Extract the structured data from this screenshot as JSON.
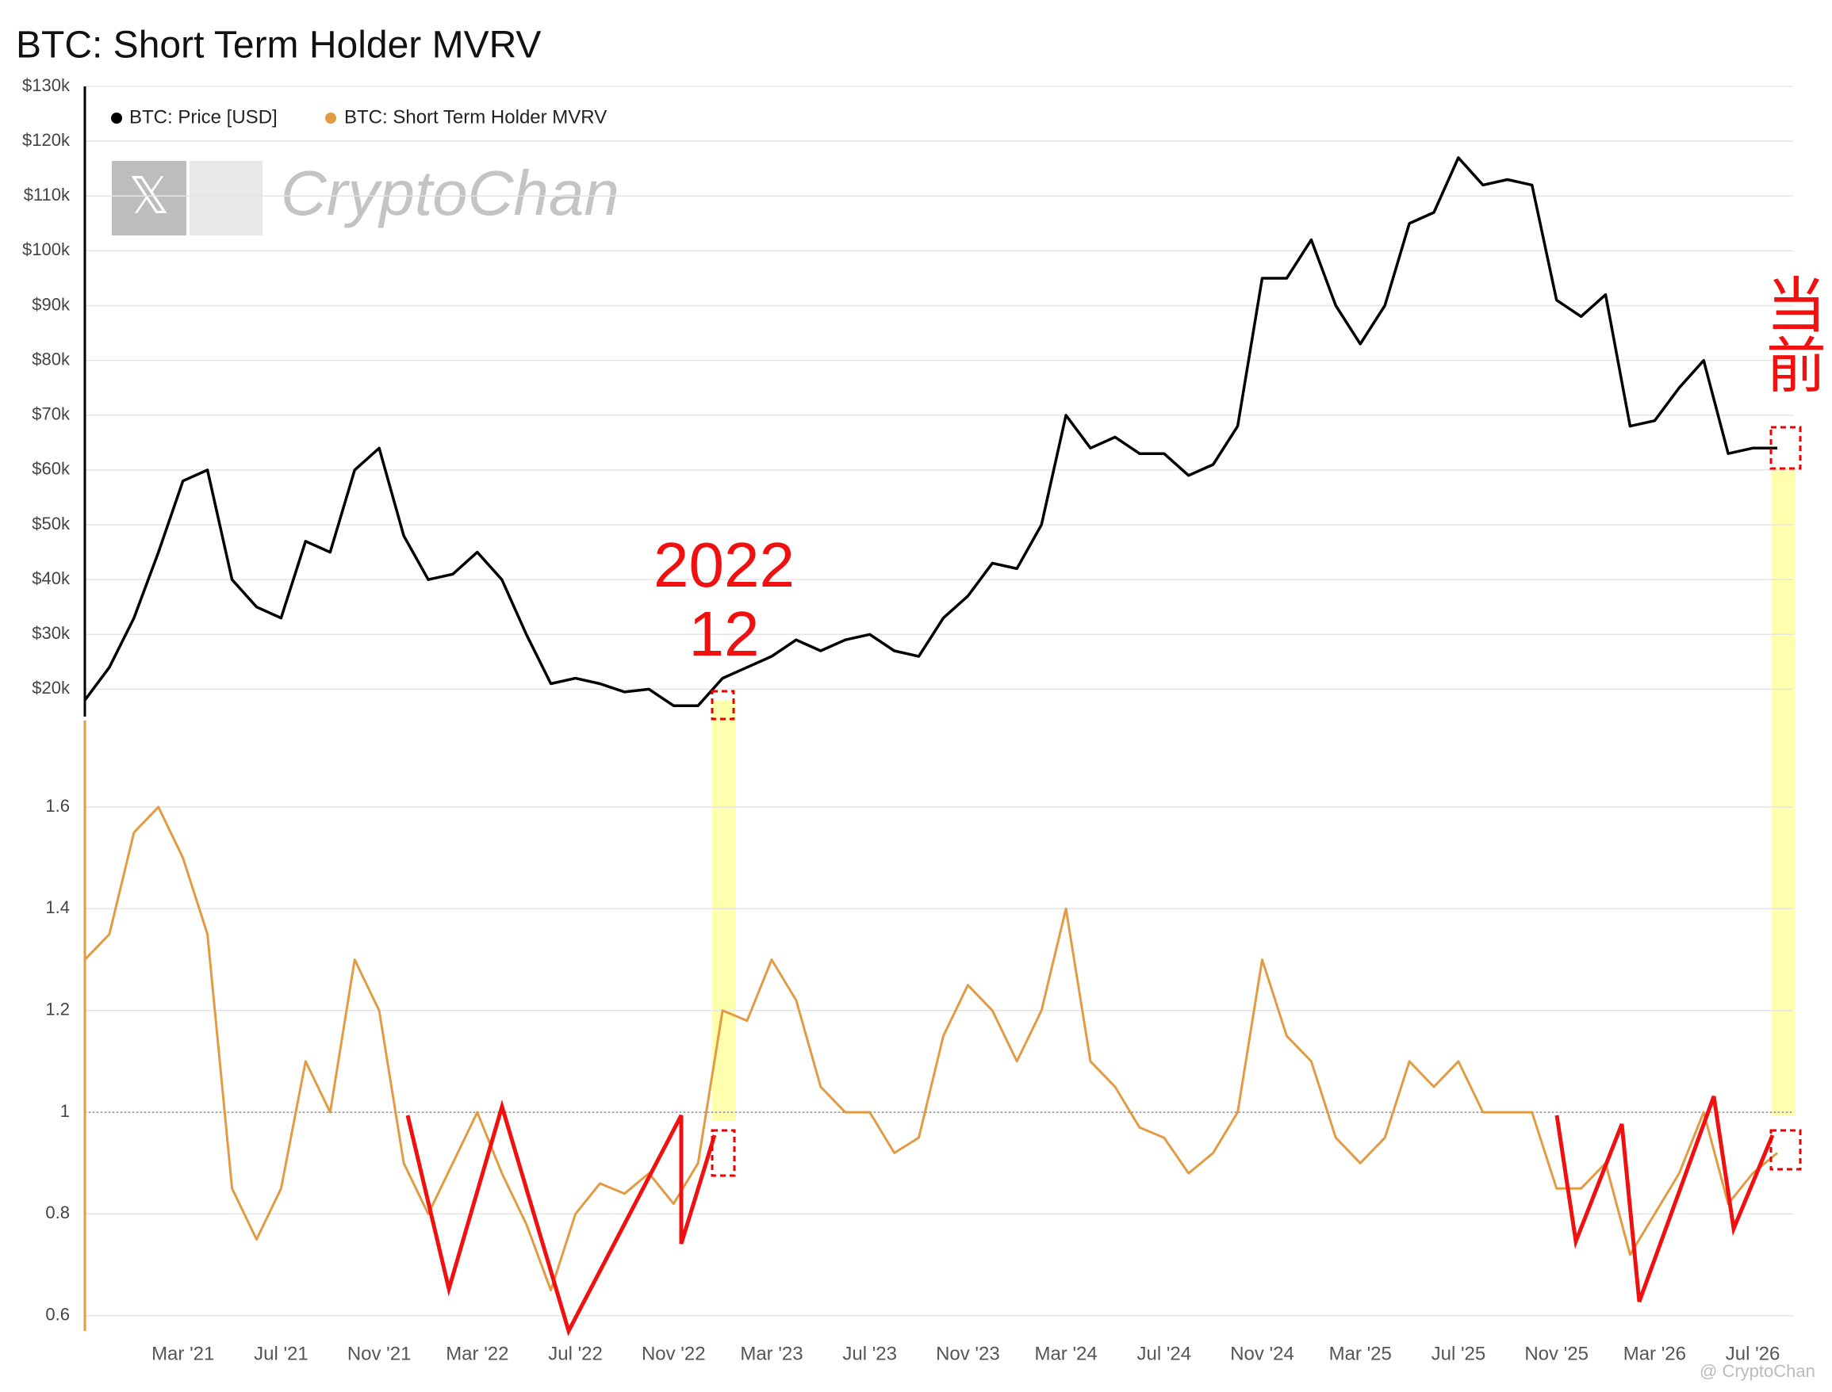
{
  "chart_data": [
    {
      "type": "line",
      "title": "BTC: Short Term Holder MVRV",
      "x": [
        "2020-11",
        "2020-12",
        "2021-01",
        "2021-02",
        "2021-03",
        "2021-04",
        "2021-05",
        "2021-06",
        "2021-07",
        "2021-08",
        "2021-09",
        "2021-10",
        "2021-11",
        "2021-12",
        "2022-01",
        "2022-02",
        "2022-03",
        "2022-04",
        "2022-05",
        "2022-06",
        "2022-07",
        "2022-08",
        "2022-09",
        "2022-10",
        "2022-11",
        "2022-12",
        "2023-01",
        "2023-02",
        "2023-03",
        "2023-04",
        "2023-05",
        "2023-06",
        "2023-07",
        "2023-08",
        "2023-09",
        "2023-10",
        "2023-11",
        "2023-12",
        "2024-01",
        "2024-02",
        "2024-03",
        "2024-04",
        "2024-05",
        "2024-06",
        "2024-07",
        "2024-08",
        "2024-09",
        "2024-10",
        "2024-11",
        "2024-12",
        "2025-01",
        "2025-02",
        "2025-03",
        "2025-04",
        "2025-05",
        "2025-06",
        "2025-07",
        "2025-08",
        "2025-09",
        "2025-10",
        "2025-11",
        "2025-12",
        "2026-01",
        "2026-02",
        "2026-03",
        "2026-04",
        "2026-05",
        "2026-06",
        "2026-07",
        "2026-08"
      ],
      "xlim": [
        "2020-11",
        "2026-08"
      ],
      "series": [
        {
          "name": "BTC: Price [USD]",
          "color": "#000000",
          "values": [
            18000,
            24000,
            33000,
            45000,
            58000,
            60000,
            40000,
            35000,
            33000,
            47000,
            45000,
            60000,
            64000,
            48000,
            40000,
            41000,
            45000,
            40000,
            30000,
            21000,
            22000,
            21000,
            19500,
            20000,
            17000,
            17000,
            22000,
            24000,
            26000,
            29000,
            27000,
            29000,
            30000,
            27000,
            26000,
            33000,
            37000,
            43000,
            42000,
            50000,
            70000,
            64000,
            66000,
            63000,
            63000,
            59000,
            61000,
            68000,
            95000,
            95000,
            102000,
            90000,
            83000,
            90000,
            105000,
            107000,
            117000,
            112000,
            113000,
            112000,
            91000,
            88000,
            92000,
            68000,
            69000,
            75000,
            80000,
            63000,
            64000,
            64000
          ]
        }
      ],
      "ylim": [
        15000,
        130000
      ],
      "yticks": [
        {
          "value": 20000,
          "label": "$20k"
        },
        {
          "value": 30000,
          "label": "$30k"
        },
        {
          "value": 40000,
          "label": "$40k"
        },
        {
          "value": 50000,
          "label": "$50k"
        },
        {
          "value": 60000,
          "label": "$60k"
        },
        {
          "value": 70000,
          "label": "$70k"
        },
        {
          "value": 80000,
          "label": "$80k"
        },
        {
          "value": 90000,
          "label": "$90k"
        },
        {
          "value": 100000,
          "label": "$100k"
        },
        {
          "value": 110000,
          "label": "$110k"
        },
        {
          "value": 120000,
          "label": "$120k"
        },
        {
          "value": 130000,
          "label": "$130k"
        }
      ],
      "grid": true
    },
    {
      "type": "line",
      "x": [
        "2020-11",
        "2020-12",
        "2021-01",
        "2021-02",
        "2021-03",
        "2021-04",
        "2021-05",
        "2021-06",
        "2021-07",
        "2021-08",
        "2021-09",
        "2021-10",
        "2021-11",
        "2021-12",
        "2022-01",
        "2022-02",
        "2022-03",
        "2022-04",
        "2022-05",
        "2022-06",
        "2022-07",
        "2022-08",
        "2022-09",
        "2022-10",
        "2022-11",
        "2022-12",
        "2023-01",
        "2023-02",
        "2023-03",
        "2023-04",
        "2023-05",
        "2023-06",
        "2023-07",
        "2023-08",
        "2023-09",
        "2023-10",
        "2023-11",
        "2023-12",
        "2024-01",
        "2024-02",
        "2024-03",
        "2024-04",
        "2024-05",
        "2024-06",
        "2024-07",
        "2024-08",
        "2024-09",
        "2024-10",
        "2024-11",
        "2024-12",
        "2025-01",
        "2025-02",
        "2025-03",
        "2025-04",
        "2025-05",
        "2025-06",
        "2025-07",
        "2025-08",
        "2025-09",
        "2025-10",
        "2025-11",
        "2025-12",
        "2026-01",
        "2026-02",
        "2026-03",
        "2026-04",
        "2026-05",
        "2026-06",
        "2026-07",
        "2026-08"
      ],
      "xlim": [
        "2020-11",
        "2026-08"
      ],
      "series": [
        {
          "name": "BTC: Short Term Holder MVRV",
          "color": "#e39b43",
          "values": [
            1.3,
            1.35,
            1.55,
            1.6,
            1.5,
            1.35,
            0.85,
            0.75,
            0.85,
            1.1,
            1.0,
            1.3,
            1.2,
            0.9,
            0.8,
            0.9,
            1.0,
            0.88,
            0.78,
            0.65,
            0.8,
            0.86,
            0.84,
            0.88,
            0.82,
            0.9,
            1.2,
            1.18,
            1.3,
            1.22,
            1.05,
            1.0,
            1.0,
            0.92,
            0.95,
            1.15,
            1.25,
            1.2,
            1.1,
            1.2,
            1.4,
            1.1,
            1.05,
            0.97,
            0.95,
            0.88,
            0.92,
            1.0,
            1.3,
            1.15,
            1.1,
            0.95,
            0.9,
            0.95,
            1.1,
            1.05,
            1.1,
            1.0,
            1.0,
            1.0,
            0.85,
            0.85,
            0.9,
            0.72,
            0.8,
            0.88,
            1.0,
            0.82,
            0.88,
            0.92
          ]
        }
      ],
      "ylim": [
        0.57,
        1.77
      ],
      "yticks": [
        0.6,
        0.8,
        1,
        1.2,
        1.4,
        1.6
      ],
      "reference_line": 1,
      "xticks": [
        {
          "value": "2021-03",
          "label": "Mar '21"
        },
        {
          "value": "2021-07",
          "label": "Jul '21"
        },
        {
          "value": "2021-11",
          "label": "Nov '21"
        },
        {
          "value": "2022-03",
          "label": "Mar '22"
        },
        {
          "value": "2022-07",
          "label": "Jul '22"
        },
        {
          "value": "2022-11",
          "label": "Nov '22"
        },
        {
          "value": "2023-03",
          "label": "Mar '23"
        },
        {
          "value": "2023-07",
          "label": "Jul '23"
        },
        {
          "value": "2023-11",
          "label": "Nov '23"
        },
        {
          "value": "2024-03",
          "label": "Mar '24"
        },
        {
          "value": "2024-07",
          "label": "Jul '24"
        },
        {
          "value": "2024-11",
          "label": "Nov '24"
        },
        {
          "value": "2025-03",
          "label": "Mar '25"
        },
        {
          "value": "2025-07",
          "label": "Jul '25"
        },
        {
          "value": "2025-11",
          "label": "Nov '25"
        },
        {
          "value": "2026-03",
          "label": "Mar '26"
        },
        {
          "value": "2026-07",
          "label": "Jul '26"
        }
      ],
      "grid": true
    }
  ],
  "annotations": [
    "2022",
    "12",
    "当前"
  ],
  "watermark": "CryptoChan",
  "footer": "@ CryptoChan"
}
